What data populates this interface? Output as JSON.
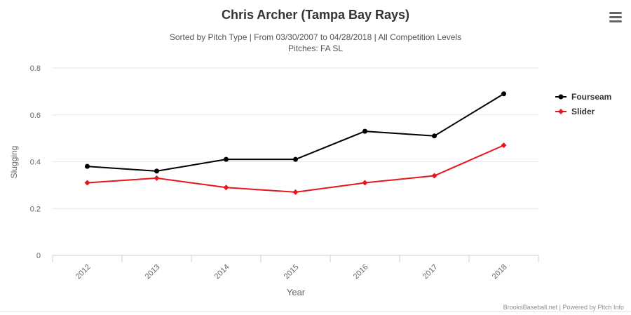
{
  "chart_data": {
    "type": "line",
    "title": "Chris Archer (Tampa Bay Rays)",
    "subtitle_line1": "Sorted by Pitch Type | From 03/30/2007 to 04/28/2018 | All Competition Levels",
    "subtitle_line2": "Pitches: FA SL",
    "xlabel": "Year",
    "ylabel": "Slugging",
    "categories": [
      "2012",
      "2013",
      "2014",
      "2015",
      "2016",
      "2017",
      "2018"
    ],
    "y_ticks": [
      "0",
      "0.2",
      "0.4",
      "0.6",
      "0.8"
    ],
    "ylim": [
      0,
      0.8
    ],
    "grid": true,
    "legend_position": "right",
    "series": [
      {
        "name": "Fourseam",
        "color": "#000000",
        "marker": "circle",
        "values": [
          0.38,
          0.36,
          0.41,
          0.41,
          0.53,
          0.51,
          0.69
        ]
      },
      {
        "name": "Slider",
        "color": "#e8151b",
        "marker": "diamond",
        "values": [
          0.31,
          0.33,
          0.29,
          0.27,
          0.31,
          0.34,
          0.47
        ]
      }
    ],
    "credits": "BrooksBaseball.net | Powered by Pitch Info"
  },
  "menu_icon": "hamburger-menu-icon"
}
